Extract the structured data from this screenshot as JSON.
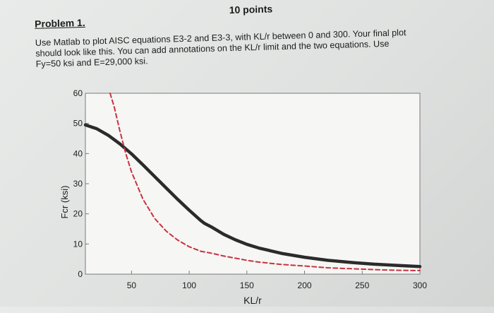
{
  "header": {
    "problem_label": "Problem 1.",
    "points_label": "10 points"
  },
  "instructions": {
    "line1": "Use Matlab to plot AISC equations E3-2 and E3-3, with KL/r between 0 and 300. Your final plot",
    "line2": "should look like this. You can add annotations on the KL/r limit and the two equations. Use",
    "line3": "Fy=50 ksi and E=29,000 ksi."
  },
  "chart_data": {
    "type": "line",
    "xlabel": "KL/r",
    "ylabel": "Fcr (ksi)",
    "xlim": [
      10,
      300
    ],
    "ylim": [
      0,
      60
    ],
    "xticks": [
      50,
      100,
      150,
      200,
      250,
      300
    ],
    "yticks": [
      0,
      10,
      20,
      30,
      40,
      50,
      60
    ],
    "grid": false,
    "colors": {
      "line_black": "#2b2b2b",
      "line_red": "#c8323f"
    },
    "series": [
      {
        "line": "solid-thick",
        "color": "#2b2b2b",
        "x": [
          10,
          20,
          30,
          40,
          50,
          60,
          70,
          80,
          90,
          100,
          110,
          113.4,
          120,
          130,
          140,
          150,
          160,
          180,
          200,
          220,
          240,
          260,
          280,
          300
        ],
        "y": [
          49.5,
          48.2,
          46.0,
          43.2,
          39.9,
          36.2,
          32.4,
          28.6,
          24.8,
          21.2,
          17.8,
          16.8,
          15.5,
          13.2,
          11.4,
          9.9,
          8.7,
          6.9,
          5.6,
          4.6,
          3.9,
          3.3,
          2.9,
          2.5
        ]
      },
      {
        "line": "dashed",
        "color": "#c8323f",
        "x": [
          31.4,
          35,
          40,
          45,
          50,
          60,
          70,
          80,
          90,
          100,
          110,
          120,
          130,
          140,
          150,
          160,
          180,
          200,
          220,
          240,
          260,
          280,
          300
        ],
        "y": [
          60,
          55.4,
          47.4,
          40.0,
          33.9,
          24.8,
          18.5,
          14.3,
          11.3,
          9.1,
          7.6,
          6.9,
          6.0,
          5.3,
          4.6,
          4.0,
          3.2,
          2.7,
          2.1,
          1.8,
          1.5,
          1.3,
          1.2
        ]
      }
    ]
  }
}
